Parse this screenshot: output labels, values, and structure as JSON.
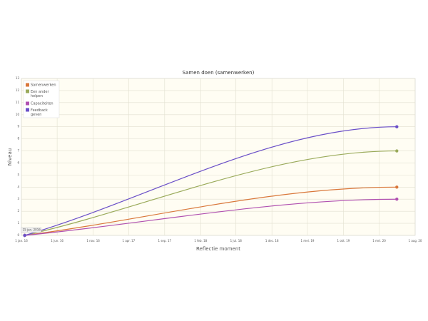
{
  "chart_data": {
    "type": "line",
    "title": "Samen doen (samenwerken)",
    "x_label": "Reflectie moment",
    "y_label": "Niveau",
    "annotation": "15 jan. 2016",
    "x": [
      "2016-01-15",
      "2020-05-15"
    ],
    "series": [
      {
        "name": "Samenwerken",
        "color": "#d9773a",
        "values": [
          0,
          4
        ]
      },
      {
        "name": "Een ander helpen",
        "color": "#9aaa5a",
        "values": [
          0,
          7
        ]
      },
      {
        "name": "Capaciteiten",
        "color": "#b050b0",
        "values": [
          0,
          3
        ]
      },
      {
        "name": "Feedback geven",
        "color": "#6a4fc8",
        "values": [
          0,
          9
        ]
      }
    ],
    "xlim": [
      "2016-01-01",
      "2020-08-01"
    ],
    "xticks": [
      {
        "value": "2016-01-01",
        "label": "1 jan. 16"
      },
      {
        "value": "2016-06-01",
        "label": "1 jun. 16"
      },
      {
        "value": "2016-11-01",
        "label": "1 nov. 16"
      },
      {
        "value": "2017-04-01",
        "label": "1 apr. 17"
      },
      {
        "value": "2017-09-01",
        "label": "1 sep. 17"
      },
      {
        "value": "2018-02-01",
        "label": "1 feb. 18"
      },
      {
        "value": "2018-07-01",
        "label": "1 jul. 18"
      },
      {
        "value": "2018-12-01",
        "label": "1 dec. 18"
      },
      {
        "value": "2019-05-01",
        "label": "1 mei. 19"
      },
      {
        "value": "2019-10-01",
        "label": "1 okt. 19"
      },
      {
        "value": "2020-03-01",
        "label": "1 mrt. 20"
      },
      {
        "value": "2020-08-01",
        "label": "1 aug. 20"
      }
    ],
    "ylim": [
      0,
      13
    ],
    "yticks": [
      0,
      1,
      2,
      3,
      4,
      5,
      6,
      7,
      8,
      9,
      10,
      11,
      12,
      13
    ],
    "grid": true,
    "legend": "top-left"
  }
}
